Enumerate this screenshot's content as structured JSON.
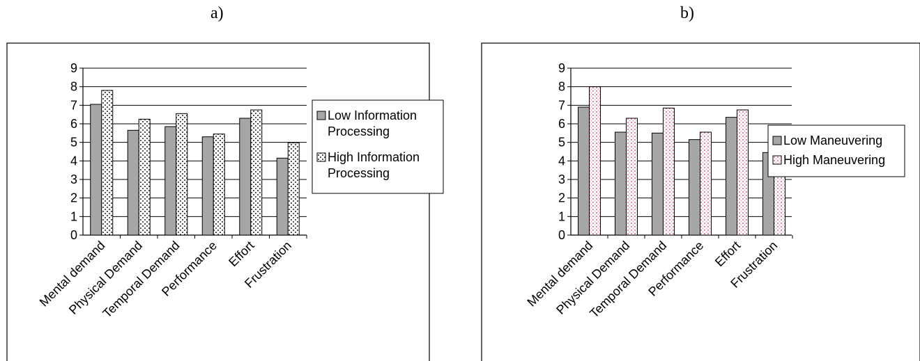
{
  "panels": [
    {
      "label": "a)"
    },
    {
      "label": "b)"
    }
  ],
  "chart_data": [
    {
      "type": "bar",
      "categories": [
        "Mental demand",
        "Physical Demand",
        "Temporal Demand",
        "Performance",
        "Effort",
        "Frustration"
      ],
      "series": [
        {
          "name": "Low Information Processing",
          "values": [
            7.05,
            5.65,
            5.85,
            5.3,
            6.3,
            4.15
          ],
          "color": "#a6a6a6",
          "pattern": "solid"
        },
        {
          "name": "High Information Processing",
          "values": [
            7.8,
            6.25,
            6.55,
            5.45,
            6.75,
            4.98
          ],
          "color": "#d0d0d0",
          "pattern": "dots"
        }
      ],
      "yticks": [
        "0",
        "1",
        "2",
        "3",
        "4",
        "5",
        "6",
        "7",
        "8",
        "9"
      ],
      "ylim": [
        0,
        9
      ],
      "grid": true,
      "legend": "right",
      "legend_lines": [
        [
          "Low Information",
          "Processing"
        ],
        [
          "High Information",
          "Processing"
        ]
      ]
    },
    {
      "type": "bar",
      "categories": [
        "Mental demand",
        "Physical Demand",
        "Temporal Demand",
        "Performance",
        "Effort",
        "Frustration"
      ],
      "series": [
        {
          "name": "Low Maneuvering",
          "values": [
            6.9,
            5.55,
            5.5,
            5.15,
            6.35,
            4.45
          ],
          "color": "#a6a6a6",
          "pattern": "solid"
        },
        {
          "name": "High Maneuvering",
          "values": [
            8.0,
            6.3,
            6.85,
            5.55,
            6.75,
            4.6
          ],
          "color": "#d0d0d0",
          "pattern": "pinkdots"
        }
      ],
      "yticks": [
        "0",
        "1",
        "2",
        "3",
        "4",
        "5",
        "6",
        "7",
        "8",
        "9"
      ],
      "ylim": [
        0,
        9
      ],
      "grid": true,
      "legend": "right",
      "legend_lines": [
        [
          "Low Maneuvering"
        ],
        [
          "High Maneuvering"
        ]
      ]
    }
  ]
}
